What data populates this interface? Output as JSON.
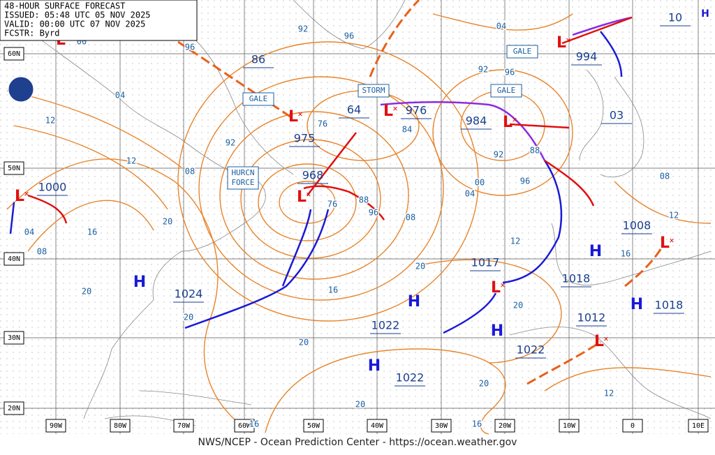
{
  "header": {
    "lines": [
      "48-HOUR SURFACE FORECAST",
      "ISSUED: 05:48 UTC 05 NOV 2025",
      "VALID: 00:00 UTC 07 NOV 2025",
      "FCSTR:  Byrd"
    ]
  },
  "latitude_labels": [
    "60N",
    "50N",
    "40N",
    "30N",
    "20N"
  ],
  "longitude_labels": [
    "90W",
    "80W",
    "70W",
    "60W",
    "50W",
    "40W",
    "30W",
    "20W",
    "10W",
    "0",
    "10E"
  ],
  "warnings": [
    "GALE",
    "STORM",
    "GALE",
    "GALE",
    "HURCN\nFORCE"
  ],
  "low_symbols": [
    "L",
    "L",
    "L",
    "L",
    "L",
    "L",
    "L",
    "L",
    "L",
    "L"
  ],
  "high_symbols": [
    "H",
    "H",
    "H",
    "H",
    "H",
    "H",
    "H"
  ],
  "pressure_labels": [
    "1000",
    "968",
    "975",
    "64",
    "976",
    "984",
    "86",
    "994",
    "1008",
    "1017",
    "1018",
    "1018",
    "1024",
    "1022",
    "1022",
    "1022",
    "1012",
    "10",
    "03"
  ],
  "isobar_labels": [
    "92",
    "96",
    "04",
    "96",
    "04",
    "12",
    "12",
    "08",
    "92",
    "76",
    "84",
    "92",
    "96",
    "92",
    "88",
    "96",
    "00",
    "04",
    "08",
    "88",
    "96",
    "76",
    "12",
    "20",
    "16",
    "20",
    "16",
    "08",
    "04",
    "20",
    "20",
    "20",
    "20",
    "20",
    "20",
    "16",
    "16",
    "12",
    "16",
    "12",
    "08",
    "00"
  ],
  "footer": "NWS/NCEP - Ocean Prediction Center - https://ocean.weather.gov"
}
